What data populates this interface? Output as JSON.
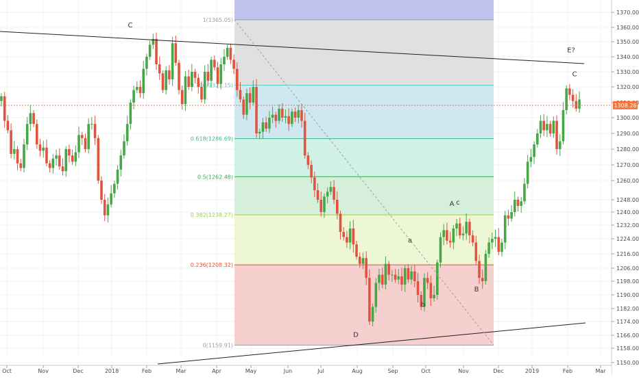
{
  "colors": {
    "up": "#46a747",
    "down": "#e0533f",
    "price_line": "#f4743b",
    "price_label_bg": "#f4743b",
    "trendline": "#1f1f1f",
    "diagonal": "#9e9e9e",
    "grid": "#f0f0f0",
    "fib_1": "#9e9e9e",
    "fib_0786": "#5fc6c6",
    "fib_0618": "#41b38a",
    "fib_05": "#3aaa4d",
    "fib_0382": "#9fcf4a",
    "fib_0236": "#e0533f",
    "fib_0": "#9e9e9e"
  },
  "chart_data": {
    "type": "candlestick",
    "title": "",
    "xlabel": "",
    "ylabel": "",
    "ylim": [
      1149,
      1375
    ],
    "price_scale": "right",
    "grid": true,
    "y_ticks": [
      "1150.00",
      "1158.00",
      "1166.00",
      "1174.00",
      "1182.00",
      "1190.00",
      "1198.00",
      "1206.00",
      "1216.00",
      "1224.00",
      "1232.00",
      "1240.00",
      "1248.00",
      "1260.00",
      "1270.00",
      "1280.00",
      "1290.00",
      "1300.00",
      "1310.00",
      "1320.00",
      "1330.00",
      "1340.00",
      "1350.00",
      "1360.00",
      "1370.00"
    ],
    "x_ticks": [
      "Oct",
      "Nov",
      "Dec",
      "2018",
      "Feb",
      "Mar",
      "Apr",
      "May",
      "Jun",
      "Jul",
      "Aug",
      "Sep",
      "Oct",
      "Nov",
      "Dec",
      "2019",
      "Feb",
      "Mar"
    ],
    "last_price_label": "1308.26",
    "last_price": 1308.26,
    "fibonacci": {
      "levels": [
        {
          "ratio": 1,
          "price": 1365.05,
          "label": "1(1365.05)"
        },
        {
          "ratio": 0.786,
          "price": 1321.15,
          "label": "0.786(1321.15)"
        },
        {
          "ratio": 0.618,
          "price": 1286.69,
          "label": "0.618(1286.69)"
        },
        {
          "ratio": 0.5,
          "price": 1262.48,
          "label": "0.5(1262.48)"
        },
        {
          "ratio": 0.382,
          "price": 1238.27,
          "label": "0.382(1238.27)"
        },
        {
          "ratio": 0.236,
          "price": 1208.32,
          "label": "0.236(1208.32)"
        },
        {
          "ratio": 0,
          "price": 1159.91,
          "label": "0(1159.91)"
        }
      ]
    },
    "wave_labels": [
      {
        "text": "C",
        "price": 1360
      },
      {
        "text": "D",
        "price": 1165
      },
      {
        "text": "a",
        "price": 1222
      },
      {
        "text": "b",
        "price": 1183
      },
      {
        "text": "A",
        "price": 1244
      },
      {
        "text": "c",
        "price": 1245
      },
      {
        "text": "B",
        "price": 1192
      },
      {
        "text": "E?",
        "price": 1343
      },
      {
        "text": "C",
        "price": 1327
      }
    ],
    "series": [
      {
        "values": [
          1314,
          1298,
          1292,
          1277,
          1280,
          1271,
          1268,
          1283,
          1296,
          1303,
          1296,
          1283,
          1279,
          1281,
          1271,
          1268,
          1274,
          1276,
          1269,
          1266,
          1280,
          1276,
          1272,
          1278,
          1289,
          1287,
          1280,
          1296,
          1296,
          1287,
          1260,
          1248,
          1238,
          1245,
          1252,
          1258,
          1267,
          1276,
          1285,
          1296,
          1310,
          1318,
          1320,
          1316,
          1332,
          1340,
          1348,
          1352,
          1335,
          1329,
          1318,
          1331,
          1325,
          1349,
          1336,
          1318,
          1309,
          1327,
          1320,
          1330,
          1326,
          1320,
          1312,
          1330,
          1324,
          1338,
          1333,
          1322,
          1335,
          1340,
          1346,
          1338,
          1332,
          1318,
          1312,
          1302,
          1316,
          1310,
          1320,
          1290,
          1291,
          1297,
          1293,
          1300,
          1302,
          1298,
          1306,
          1300,
          1301,
          1296,
          1304,
          1300,
          1305,
          1298,
          1276,
          1270,
          1262,
          1254,
          1248,
          1240,
          1250,
          1253,
          1256,
          1248,
          1239,
          1228,
          1225,
          1222,
          1230,
          1221,
          1214,
          1209,
          1213,
          1200,
          1174,
          1183,
          1197,
          1202,
          1196,
          1209,
          1202,
          1202,
          1199,
          1201,
          1196,
          1206,
          1199,
          1204,
          1198,
          1190,
          1183,
          1200,
          1197,
          1188,
          1190,
          1210,
          1225,
          1229,
          1223,
          1222,
          1230,
          1233,
          1226,
          1227,
          1234,
          1226,
          1222,
          1211,
          1200,
          1198,
          1216,
          1222,
          1224,
          1225,
          1217,
          1222,
          1238,
          1236,
          1240,
          1248,
          1244,
          1247,
          1258,
          1272,
          1275,
          1283,
          1290,
          1298,
          1292,
          1296,
          1290,
          1298,
          1280,
          1285,
          1305,
          1319,
          1315,
          1311,
          1306,
          1312
        ]
      }
    ]
  }
}
